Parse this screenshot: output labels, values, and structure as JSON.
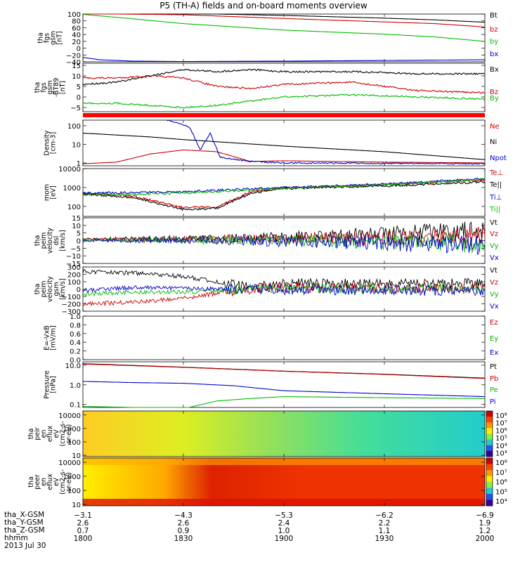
{
  "title": "P5 (TH-A) fields and on-board moments overview",
  "chart_data": [
    {
      "type": "line",
      "ylabel": [
        "tha",
        "fgs",
        "gsm",
        "[nT]"
      ],
      "ylim": [
        -40,
        100
      ],
      "yticks": [
        "100",
        "80",
        "60",
        "40",
        "20",
        "0",
        "−20",
        "−40"
      ],
      "legend": [
        {
          "name": "Bt",
          "color": "#000000"
        },
        {
          "name": "bz",
          "color": "#cc0000"
        },
        {
          "name": "by",
          "color": "#00bb00"
        },
        {
          "name": "bx",
          "color": "#0000cc"
        }
      ],
      "series": [
        {
          "name": "Bt",
          "color": "#000000",
          "x": [
            1800,
            1830,
            1900,
            1930,
            1945,
            2000
          ],
          "y": [
            104,
            102,
            96,
            88,
            83,
            76
          ]
        },
        {
          "name": "bz",
          "color": "#cc0000",
          "x": [
            1800,
            1830,
            1900,
            1930,
            1945,
            2000
          ],
          "y": [
            101,
            98,
            87,
            77,
            72,
            62
          ]
        },
        {
          "name": "by",
          "color": "#00bb00",
          "x": [
            1800,
            1815,
            1830,
            1900,
            1930,
            1945,
            2000
          ],
          "y": [
            99,
            86,
            72,
            53,
            41,
            33,
            20
          ]
        },
        {
          "name": "bx",
          "color": "#0000cc",
          "x": [
            1800,
            1805,
            1815,
            1830,
            1900,
            1930,
            2000
          ],
          "y": [
            -27,
            -34,
            -38,
            -39,
            -38,
            -36,
            -34
          ]
        }
      ]
    },
    {
      "type": "line",
      "ylabel": [
        "tha",
        "fgs",
        "gsm",
        "-BT89",
        "[nT]"
      ],
      "ylim": [
        -7,
        16
      ],
      "yticks": [
        "15",
        "10",
        "5",
        "0",
        "−5"
      ],
      "legend": [
        {
          "name": "Bx",
          "color": "#000000"
        },
        {
          "name": "Bz",
          "color": "#cc0000"
        },
        {
          "name": "By",
          "color": "#00bb00"
        }
      ],
      "series": [
        {
          "name": "Bx",
          "color": "#000000",
          "x": [
            1800,
            1810,
            1820,
            1830,
            1840,
            1850,
            1900,
            1920,
            1940,
            2000
          ],
          "y": [
            6,
            7,
            10,
            13,
            12,
            13,
            12,
            12,
            11,
            11
          ]
        },
        {
          "name": "Bz",
          "color": "#cc0000",
          "x": [
            1800,
            1810,
            1820,
            1830,
            1840,
            1850,
            1900,
            1920,
            1940,
            2000
          ],
          "y": [
            9,
            9,
            10,
            9,
            5,
            4,
            6,
            7,
            3,
            2
          ]
        },
        {
          "name": "By",
          "color": "#00bb00",
          "x": [
            1800,
            1810,
            1820,
            1830,
            1840,
            1850,
            1900,
            1920,
            1940,
            2000
          ],
          "y": [
            -3,
            -3,
            -4,
            -5,
            -4,
            -2,
            0,
            1,
            0,
            -1
          ]
        }
      ]
    },
    {
      "type": "line",
      "ylabel": [
        "Density",
        "[cm-3]"
      ],
      "yscale": "log",
      "ylim": [
        0.7,
        200
      ],
      "yticks": [
        "100",
        "10",
        "1"
      ],
      "legend": [
        {
          "name": "Ne",
          "color": "#cc0000"
        },
        {
          "name": "Ni",
          "color": "#000000"
        },
        {
          "name": "Npot",
          "color": "#0000cc"
        }
      ],
      "series": [
        {
          "name": "Ne",
          "color": "#cc0000",
          "x": [
            1800,
            1810,
            1820,
            1830,
            1840,
            1850,
            1900,
            1930,
            2000
          ],
          "y": [
            0.9,
            1.1,
            3,
            5,
            4,
            1.2,
            1.3,
            1.1,
            1.0
          ]
        },
        {
          "name": "Ni",
          "color": "#000000",
          "x": [
            1800,
            1820,
            1830,
            1900,
            1930,
            2000
          ],
          "y": [
            40,
            25,
            18,
            8,
            4,
            1.5
          ]
        },
        {
          "name": "Npot",
          "color": "#0000cc",
          "x": [
            1825,
            1828,
            1832,
            1835,
            1838,
            1841,
            1850,
            1900,
            2000
          ],
          "y": [
            200,
            150,
            80,
            5,
            40,
            2,
            1.2,
            1.0,
            0.9
          ]
        }
      ]
    },
    {
      "type": "line",
      "ylabel": [
        "mom",
        "[eV]"
      ],
      "yscale": "log",
      "ylim": [
        30,
        10000
      ],
      "yticks": [
        "10000",
        "1000",
        "100"
      ],
      "legend": [
        {
          "name": "Te⊥",
          "color": "#cc0000"
        },
        {
          "name": "Te||",
          "color": "#000000"
        },
        {
          "name": "Ti⊥",
          "color": "#0000cc"
        },
        {
          "name": "Ti||",
          "color": "#00bb00"
        }
      ],
      "series": [
        {
          "name": "Te⊥",
          "color": "#cc0000",
          "x": [
            1800,
            1815,
            1830,
            1840,
            1850,
            1900,
            1930,
            2000
          ],
          "y": [
            500,
            350,
            90,
            90,
            600,
            1000,
            1400,
            2500
          ]
        },
        {
          "name": "Te||",
          "color": "#000000",
          "x": [
            1800,
            1815,
            1830,
            1840,
            1850,
            1900,
            1930,
            2000
          ],
          "y": [
            450,
            300,
            70,
            80,
            500,
            900,
            1200,
            2000
          ]
        },
        {
          "name": "Ti⊥",
          "color": "#0000cc",
          "x": [
            1800,
            1830,
            1900,
            1930,
            2000
          ],
          "y": [
            500,
            600,
            1000,
            1500,
            3000
          ]
        },
        {
          "name": "Ti||",
          "color": "#00bb00",
          "x": [
            1800,
            1830,
            1900,
            1930,
            2000
          ],
          "y": [
            400,
            500,
            900,
            1400,
            2800
          ]
        }
      ]
    },
    {
      "type": "line",
      "ylabel": [
        "tha",
        "peim",
        "velocity",
        "dsl",
        "[km/s]"
      ],
      "ylim": [
        -15,
        15
      ],
      "yticks": [
        "15",
        "10",
        "5",
        "0",
        "−5",
        "−10",
        "−15"
      ],
      "legend": [
        {
          "name": "Vt",
          "color": "#000000"
        },
        {
          "name": "Vz",
          "color": "#cc0000"
        },
        {
          "name": "Vy",
          "color": "#00bb00"
        },
        {
          "name": "Vx",
          "color": "#0000cc"
        }
      ],
      "series": [
        {
          "name": "Vt",
          "color": "#000000",
          "x": [
            1800,
            1830,
            1900,
            1930,
            2000
          ],
          "y": [
            1,
            1.5,
            2,
            4,
            7
          ]
        },
        {
          "name": "Vz",
          "color": "#cc0000",
          "x": [
            1800,
            1830,
            1900,
            1930,
            2000
          ],
          "y": [
            0.5,
            1,
            1.2,
            1.8,
            3
          ]
        },
        {
          "name": "Vy",
          "color": "#00bb00",
          "x": [
            1800,
            1830,
            1900,
            1930,
            2000
          ],
          "y": [
            0.3,
            0.4,
            0,
            -1,
            -2
          ]
        },
        {
          "name": "Vx",
          "color": "#0000cc",
          "x": [
            1800,
            1830,
            1900,
            1930,
            2000
          ],
          "y": [
            0,
            0.2,
            -0.5,
            -1.5,
            -3
          ]
        }
      ]
    },
    {
      "type": "line",
      "ylabel": [
        "tha",
        "peim",
        "velocity",
        "gsm",
        "[km/s]"
      ],
      "ylim": [
        -300,
        300
      ],
      "yticks": [
        "300",
        "200",
        "100",
        "0",
        "−100",
        "−200",
        "−300"
      ],
      "legend": [
        {
          "name": "Vt",
          "color": "#000000"
        },
        {
          "name": "Vz",
          "color": "#cc0000"
        },
        {
          "name": "Vy",
          "color": "#00bb00"
        },
        {
          "name": "Vx",
          "color": "#0000cc"
        }
      ],
      "series": [
        {
          "name": "Vt",
          "color": "#000000",
          "x": [
            1800,
            1815,
            1830,
            1840,
            1850,
            1900,
            1930,
            2000
          ],
          "y": [
            240,
            220,
            170,
            100,
            20,
            80,
            70,
            80
          ]
        },
        {
          "name": "Vz",
          "color": "#cc0000",
          "x": [
            1800,
            1815,
            1830,
            1840,
            1850,
            1900,
            1930,
            2000
          ],
          "y": [
            -200,
            -180,
            -120,
            -60,
            0,
            20,
            20,
            20
          ]
        },
        {
          "name": "Vy",
          "color": "#00bb00",
          "x": [
            1800,
            1815,
            1830,
            1840,
            1850,
            1900,
            1930,
            2000
          ],
          "y": [
            -70,
            -40,
            -40,
            -20,
            0,
            10,
            0,
            0
          ]
        },
        {
          "name": "Vx",
          "color": "#0000cc",
          "x": [
            1800,
            1815,
            1830,
            1840,
            1850,
            1900,
            1930,
            2000
          ],
          "y": [
            -20,
            20,
            10,
            0,
            0,
            -10,
            -20,
            -30
          ]
        }
      ]
    },
    {
      "type": "line",
      "ylabel": [
        "E=-VxB",
        "[mV/m]"
      ],
      "ylim": [
        0,
        1
      ],
      "yticks": [
        "1.0",
        "0.8",
        "0.6",
        "0.4",
        "0.2",
        "0.0"
      ],
      "legend": [
        {
          "name": "Ez",
          "color": "#cc0000"
        },
        {
          "name": "Ey",
          "color": "#00bb00"
        },
        {
          "name": "Ex",
          "color": "#0000cc"
        }
      ],
      "series": []
    },
    {
      "type": "line",
      "ylabel": [
        "Pressure",
        "[nPa]"
      ],
      "yscale": "log",
      "ylim": [
        0.07,
        15
      ],
      "yticks": [
        "10.0",
        "1.0",
        "0.1"
      ],
      "legend": [
        {
          "name": "Pt",
          "color": "#000000"
        },
        {
          "name": "Pb",
          "color": "#cc0000"
        },
        {
          "name": "Pe",
          "color": "#00bb00"
        },
        {
          "name": "Pi",
          "color": "#0000cc"
        }
      ],
      "series": [
        {
          "name": "Pt",
          "color": "#000000",
          "x": [
            1800,
            1830,
            1900,
            1930,
            2000
          ],
          "y": [
            12,
            8,
            5,
            3.5,
            2.2
          ]
        },
        {
          "name": "Pb",
          "color": "#cc0000",
          "x": [
            1800,
            1830,
            1900,
            1930,
            2000
          ],
          "y": [
            11.5,
            7.8,
            4.9,
            3.4,
            2.1
          ]
        },
        {
          "name": "Pe",
          "color": "#00bb00",
          "x": [
            1800,
            1815,
            1830,
            1840,
            1850,
            1900,
            1930,
            2000
          ],
          "y": [
            0.08,
            0.07,
            0.06,
            0.15,
            0.2,
            0.25,
            0.22,
            0.2
          ]
        },
        {
          "name": "Pi",
          "color": "#0000cc",
          "x": [
            1800,
            1815,
            1830,
            1845,
            1900,
            1930,
            2000
          ],
          "y": [
            1.5,
            1.3,
            1.2,
            0.9,
            0.5,
            0.35,
            0.25
          ]
        }
      ]
    },
    {
      "type": "heatmap",
      "ylabel": [
        "tha",
        "peir",
        "en",
        "eflux",
        "eV",
        "(cm2-s-",
        "sr-eV)"
      ],
      "yscale": "log",
      "ylim": [
        8,
        20000
      ],
      "yticks": [
        "10000",
        "1000",
        "100",
        "10"
      ],
      "colorbar_labels": [
        "10⁸",
        "10⁷",
        "10⁶",
        "10⁵",
        "10⁴",
        "10³"
      ]
    },
    {
      "type": "heatmap",
      "ylabel": [
        "tha",
        "peer",
        "en",
        "eflux",
        "eV",
        "(cm2-s-",
        "sr-eV)"
      ],
      "yscale": "log",
      "ylim": [
        8,
        20000
      ],
      "yticks": [
        "10000",
        "1000",
        "100",
        "10"
      ],
      "colorbar_labels": [
        "10⁸",
        "10⁷",
        "10⁶",
        "10⁵",
        "10⁴"
      ]
    }
  ],
  "xaxis": {
    "x": [
      1800,
      1830,
      1900,
      1930,
      2000
    ],
    "row_labels": [
      "tha_X-GSM",
      "tha_Y-GSM",
      "tha_Z-GSM",
      "hhmm",
      "2013 Jul 30"
    ],
    "rows": [
      [
        "−3.1",
        "−4.3",
        "−5.3",
        "−6.2",
        "−6.9"
      ],
      [
        "2.6",
        "2.6",
        "2.4",
        "2.2",
        "1.9"
      ],
      [
        "0.7",
        "0.9",
        "1.0",
        "1.1",
        "1.2"
      ],
      [
        "1800",
        "1830",
        "1900",
        "1930",
        "2000"
      ]
    ]
  }
}
